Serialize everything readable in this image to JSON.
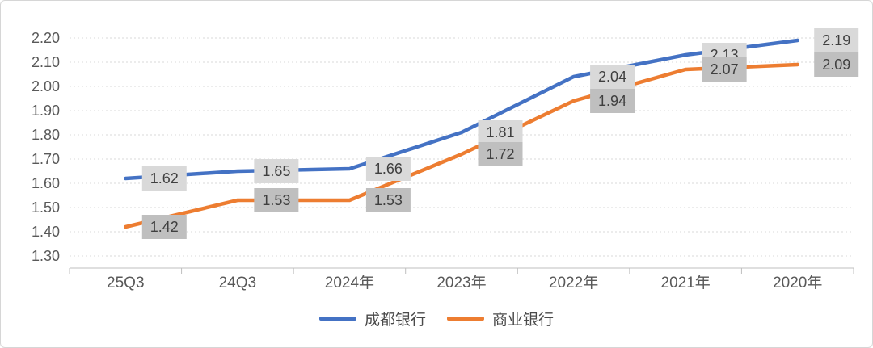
{
  "chart_data": {
    "type": "line",
    "categories": [
      "25Q3",
      "24Q3",
      "2024年",
      "2023年",
      "2022年",
      "2021年",
      "2020年"
    ],
    "series": [
      {
        "name": "成都银行",
        "color": "#4472C4",
        "label_bg": "#D9D9D9",
        "values": [
          1.62,
          1.65,
          1.66,
          1.81,
          2.04,
          2.13,
          2.19
        ]
      },
      {
        "name": "商业银行",
        "color": "#ED7D31",
        "label_bg": "#BFBFBF",
        "values": [
          1.42,
          1.53,
          1.53,
          1.72,
          1.94,
          2.07,
          2.09
        ]
      }
    ],
    "y_ticks": [
      2.2,
      2.1,
      2.0,
      1.9,
      1.8,
      1.7,
      1.6,
      1.5,
      1.4,
      1.3
    ],
    "ylim": [
      1.3,
      2.2
    ],
    "value_format": "0.00",
    "grid": true,
    "gridline_color": "#D9D9D9",
    "axis_line_color": "#BFBFBF",
    "axis_text_color": "#595959",
    "data_label_text_color": "#3F3F3F",
    "legend_position": "bottom"
  }
}
